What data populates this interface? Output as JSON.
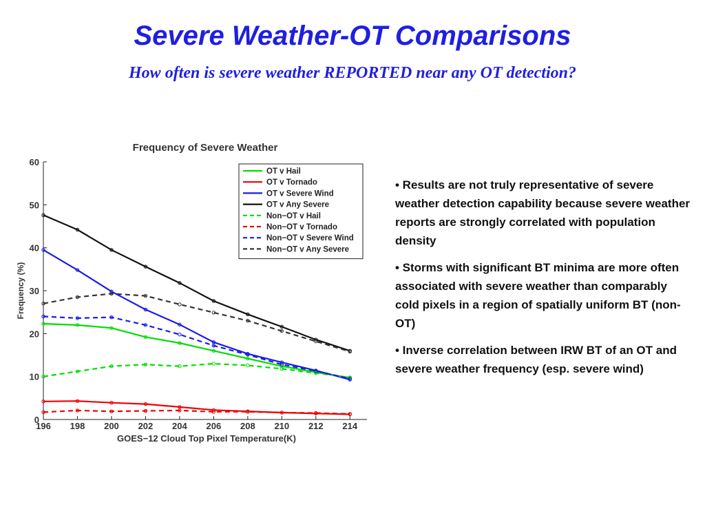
{
  "slide": {
    "title": "Severe Weather-OT Comparisons",
    "subtitle": "How often is severe weather REPORTED near any OT detection?"
  },
  "bullets": [
    "• Results are not truly representative of severe weather detection capability because severe weather reports are strongly correlated with population density",
    "• Storms with significant BT minima are more often associated with severe weather than comparably cold pixels in a region of spatially uniform BT (non-OT)",
    "• Inverse correlation between IRW BT of an OT and severe weather frequency (esp. severe wind)"
  ],
  "chart_data": {
    "type": "line",
    "title": "Frequency of Severe Weather",
    "xlabel": "GOES−12 Cloud Top Pixel Temperature(K)",
    "ylabel": "Frequency (%)",
    "x": [
      196,
      198,
      200,
      202,
      204,
      206,
      208,
      210,
      212,
      214
    ],
    "xlim": [
      196,
      215
    ],
    "ylim": [
      0,
      60
    ],
    "yticks": [
      0,
      10,
      20,
      30,
      40,
      50,
      60
    ],
    "legend_position": "top-right",
    "series": [
      {
        "name": "OT v Hail",
        "color": "#00dd00",
        "dash": "solid",
        "values": [
          22.3,
          22.0,
          21.3,
          19.2,
          17.8,
          16.0,
          14.2,
          12.4,
          11.0,
          9.7
        ]
      },
      {
        "name": "OT v Tornado",
        "color": "#ee0000",
        "dash": "solid",
        "values": [
          4.2,
          4.3,
          3.9,
          3.6,
          2.9,
          2.2,
          1.9,
          1.6,
          1.4,
          1.2
        ]
      },
      {
        "name": "OT v Severe Wind",
        "color": "#1a1ae6",
        "dash": "solid",
        "values": [
          39.5,
          34.8,
          29.8,
          25.6,
          22.1,
          18.0,
          15.3,
          13.3,
          11.4,
          9.3
        ]
      },
      {
        "name": "OT v Any Severe",
        "color": "#111111",
        "dash": "solid",
        "values": [
          47.6,
          44.2,
          39.5,
          35.6,
          31.8,
          27.6,
          24.5,
          21.6,
          18.6,
          16.0
        ]
      },
      {
        "name": "Non−OT v Hail",
        "color": "#00dd00",
        "dash": "dashed",
        "values": [
          10.0,
          11.2,
          12.4,
          12.8,
          12.4,
          13.0,
          12.6,
          11.8,
          10.8,
          9.8
        ]
      },
      {
        "name": "Non−OT v Tornado",
        "color": "#ee0000",
        "dash": "dashed",
        "values": [
          1.7,
          2.1,
          1.9,
          2.0,
          2.1,
          1.8,
          1.8,
          1.6,
          1.5,
          1.3
        ]
      },
      {
        "name": "Non−OT v Severe Wind",
        "color": "#1a1ae6",
        "dash": "dashed",
        "values": [
          24.0,
          23.6,
          23.8,
          22.0,
          19.8,
          17.2,
          15.1,
          12.8,
          11.3,
          9.5
        ]
      },
      {
        "name": "Non−OT v Any Severe",
        "color": "#333333",
        "dash": "dashed",
        "values": [
          27.0,
          28.5,
          29.3,
          28.8,
          26.8,
          24.9,
          23.0,
          20.6,
          18.2,
          15.8
        ]
      }
    ]
  }
}
